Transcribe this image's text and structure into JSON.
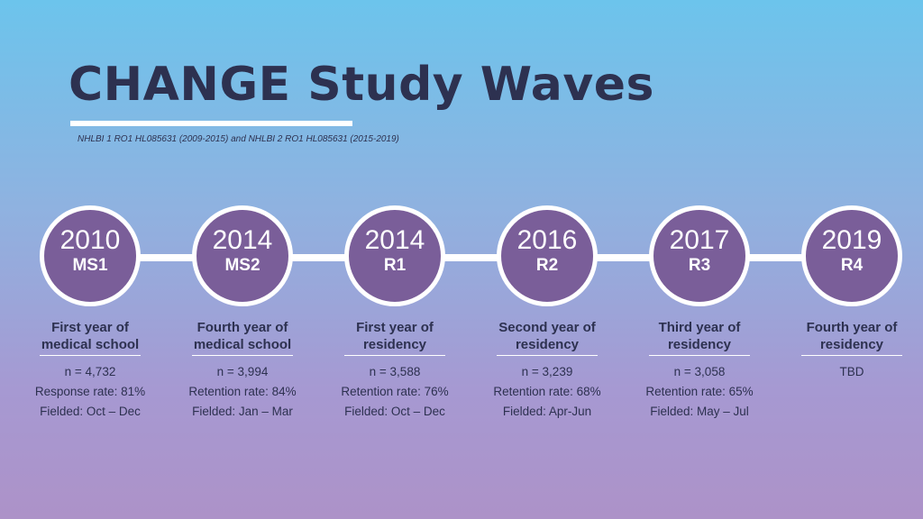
{
  "title": "CHANGE Study Waves",
  "grant_note": "NHLBI 1 RO1 HL085631 (2009-2015) and NHLBI 2 RO1 HL085631 (2015-2019)",
  "colors": {
    "circle_fill": "#7a5e99",
    "text_dark": "#2d3150",
    "line": "#ffffff"
  },
  "waves": [
    {
      "year": "2010",
      "code": "MS1",
      "desc_line1": "First year of",
      "desc_line2": "medical school",
      "n": "n = 4,732",
      "rate": "Response rate: 81%",
      "fielded": "Fielded: Oct – Dec"
    },
    {
      "year": "2014",
      "code": "MS2",
      "desc_line1": "Fourth year of",
      "desc_line2": "medical school",
      "n": "n = 3,994",
      "rate": "Retention rate: 84%",
      "fielded": "Fielded: Jan – Mar"
    },
    {
      "year": "2014",
      "code": "R1",
      "desc_line1": "First year of",
      "desc_line2": "residency",
      "n": "n = 3,588",
      "rate": "Retention rate: 76%",
      "fielded": "Fielded: Oct – Dec"
    },
    {
      "year": "2016",
      "code": "R2",
      "desc_line1": "Second year of",
      "desc_line2": "residency",
      "n": "n = 3,239",
      "rate": "Retention rate: 68%",
      "fielded": "Fielded: Apr-Jun"
    },
    {
      "year": "2017",
      "code": "R3",
      "desc_line1": "Third year of",
      "desc_line2": "residency",
      "n": "n = 3,058",
      "rate": "Retention rate: 65%",
      "fielded": "Fielded: May – Jul"
    },
    {
      "year": "2019",
      "code": "R4",
      "desc_line1": "Fourth year of",
      "desc_line2": "residency",
      "n": "TBD",
      "rate": "",
      "fielded": ""
    }
  ]
}
